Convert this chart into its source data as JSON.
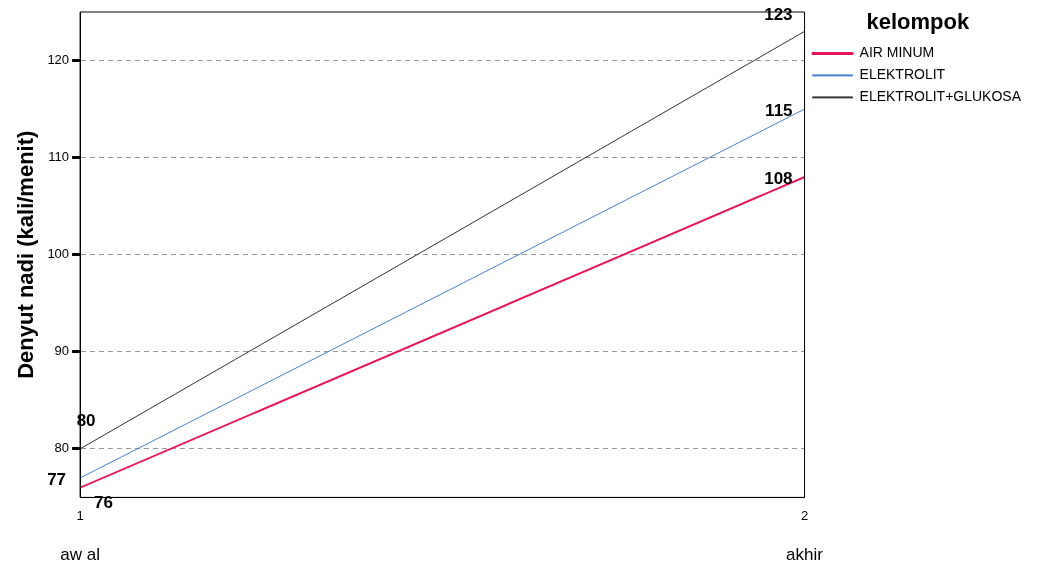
{
  "chart_data": {
    "type": "line",
    "ylabel": "Denyut nadi (kali/menit)",
    "legend_title": "kelompok",
    "x": [
      1,
      2
    ],
    "xlim": [
      1,
      2
    ],
    "xticks": [
      1,
      2
    ],
    "ylim": [
      75,
      125
    ],
    "yticks": [
      80,
      90,
      100,
      110,
      120
    ],
    "series": [
      {
        "name": "AIR MINUM",
        "color": "#e8175d",
        "values": [
          76,
          108
        ]
      },
      {
        "name": "ELEKTROLIT",
        "color": "#4a7fd4",
        "values": [
          77,
          115
        ]
      },
      {
        "name": "ELEKTROLIT+GLUKOSA",
        "color": "#333333",
        "values": [
          80,
          123
        ]
      }
    ],
    "annotations": [
      "aw al",
      "akhir"
    ],
    "data_labels": true,
    "grid": "y",
    "legend": "right",
    "marker": "none",
    "line_style": "solid"
  }
}
